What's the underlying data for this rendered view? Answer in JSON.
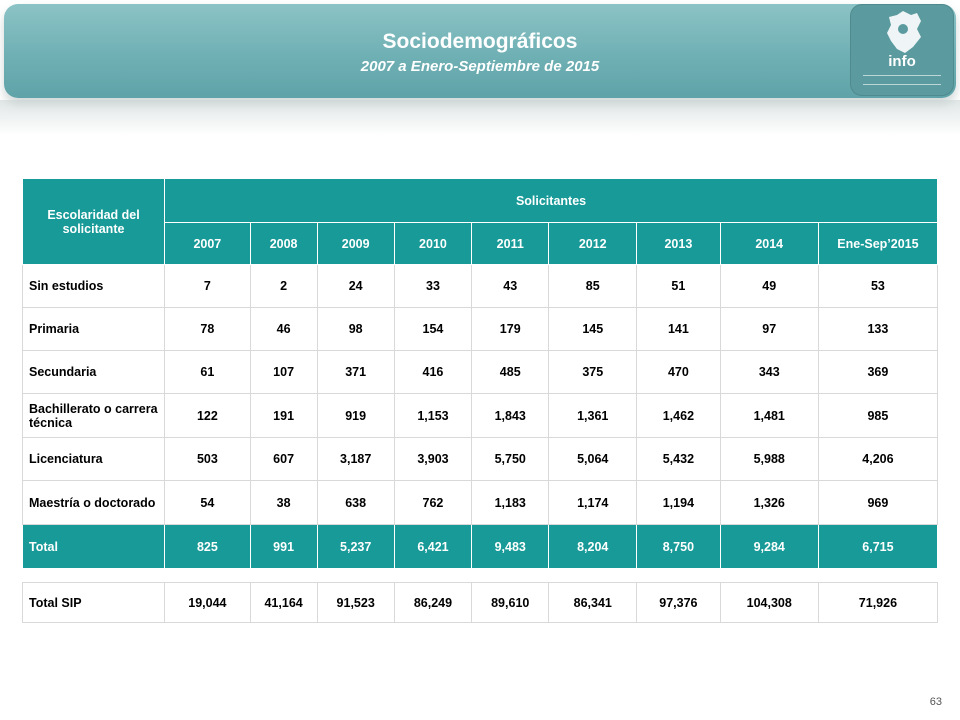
{
  "header": {
    "title": "Sociodemográficos",
    "subtitle": "2007 a Enero-Septiembre de 2015",
    "logo_text": "info"
  },
  "table": {
    "row_header": "Escolaridad del solicitante",
    "group_header": "Solicitantes",
    "years": [
      "2007",
      "2008",
      "2009",
      "2010",
      "2011",
      "2012",
      "2013",
      "2014",
      "Ene-Sep’2015"
    ],
    "rows": [
      {
        "label": "Sin estudios",
        "values": [
          "7",
          "2",
          "24",
          "33",
          "43",
          "85",
          "51",
          "49",
          "53"
        ]
      },
      {
        "label": "Primaria",
        "values": [
          "78",
          "46",
          "98",
          "154",
          "179",
          "145",
          "141",
          "97",
          "133"
        ]
      },
      {
        "label": "Secundaria",
        "values": [
          "61",
          "107",
          "371",
          "416",
          "485",
          "375",
          "470",
          "343",
          "369"
        ]
      },
      {
        "label": "Bachillerato o carrera técnica",
        "values": [
          "122",
          "191",
          "919",
          "1,153",
          "1,843",
          "1,361",
          "1,462",
          "1,481",
          "985"
        ]
      },
      {
        "label": "Licenciatura",
        "values": [
          "503",
          "607",
          "3,187",
          "3,903",
          "5,750",
          "5,064",
          "5,432",
          "5,988",
          "4,206"
        ]
      },
      {
        "label": "Maestría o doctorado",
        "values": [
          "54",
          "38",
          "638",
          "762",
          "1,183",
          "1,174",
          "1,194",
          "1,326",
          "969"
        ]
      }
    ],
    "total": {
      "label": "Total",
      "values": [
        "825",
        "991",
        "5,237",
        "6,421",
        "9,483",
        "8,204",
        "8,750",
        "9,284",
        "6,715"
      ]
    }
  },
  "sip": {
    "label": "Total SIP",
    "values": [
      "19,044",
      "41,164",
      "91,523",
      "86,249",
      "89,610",
      "86,341",
      "97,376",
      "104,308",
      "71,926"
    ]
  },
  "page_number": "63",
  "colors": {
    "accent": "#179a98",
    "banner": "#6fb0b4"
  }
}
